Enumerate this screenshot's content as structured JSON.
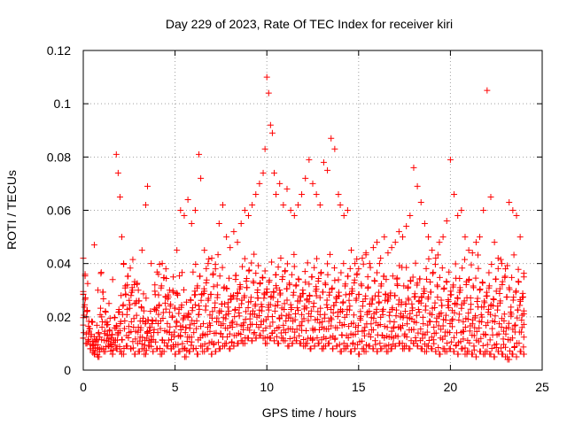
{
  "chart_data": {
    "type": "scatter",
    "title": "Day 229 of 2023, Rate Of TEC Index for receiver kiri",
    "xlabel": "GPS time / hours",
    "ylabel": "ROTI / TECUs",
    "xlim": [
      0,
      25
    ],
    "ylim": [
      0,
      0.12
    ],
    "xticks": [
      "0",
      "5",
      "10",
      "15",
      "20",
      "25"
    ],
    "yticks": [
      "0",
      "0.02",
      "0.04",
      "0.06",
      "0.08",
      "0.1",
      "0.12"
    ],
    "grid": true,
    "marker": "plus",
    "color": "#ff0000",
    "series": [
      {
        "x": [
          0.0,
          0.1,
          0.2,
          0.3,
          0.5,
          0.6,
          0.8,
          1.0,
          1.2,
          1.4,
          1.6,
          1.8,
          1.9,
          2.0,
          2.1,
          2.2,
          2.4,
          2.6,
          2.8,
          3.0,
          3.2,
          3.4,
          3.5,
          3.7,
          3.9,
          4.1,
          4.3,
          4.5,
          4.7,
          4.9,
          5.1,
          5.3,
          5.5,
          5.7,
          5.9,
          6.1,
          6.3,
          6.4,
          6.6,
          6.8,
          7.0,
          7.2,
          7.4,
          7.6,
          7.8,
          8.0,
          8.2,
          8.4,
          8.6,
          8.8,
          9.0,
          9.2,
          9.4,
          9.6,
          9.8,
          9.9,
          10.0,
          10.1,
          10.2,
          10.3,
          10.4,
          10.5,
          10.7,
          10.9,
          11.1,
          11.3,
          11.5,
          11.7,
          11.9,
          12.1,
          12.3,
          12.5,
          12.7,
          12.9,
          13.1,
          13.3,
          13.5,
          13.7,
          13.9,
          14.0,
          14.2,
          14.4,
          14.6,
          14.8,
          15.0,
          15.2,
          15.4,
          15.6,
          15.8,
          16.0,
          16.2,
          16.4,
          16.6,
          16.8,
          17.0,
          17.2,
          17.4,
          17.6,
          17.8,
          18.0,
          18.2,
          18.4,
          18.6,
          18.8,
          19.0,
          19.2,
          19.4,
          19.6,
          19.8,
          20.0,
          20.2,
          20.4,
          20.6,
          20.8,
          21.0,
          21.2,
          21.4,
          21.6,
          21.8,
          22.0,
          22.2,
          22.4,
          22.6,
          22.8,
          23.0,
          23.2,
          23.4,
          23.6,
          23.8,
          24.0
        ],
        "y": [
          0.042,
          0.036,
          0.022,
          0.014,
          0.018,
          0.047,
          0.03,
          0.02,
          0.018,
          0.025,
          0.034,
          0.081,
          0.074,
          0.065,
          0.05,
          0.04,
          0.032,
          0.028,
          0.025,
          0.03,
          0.045,
          0.062,
          0.069,
          0.04,
          0.032,
          0.036,
          0.04,
          0.038,
          0.03,
          0.035,
          0.045,
          0.06,
          0.058,
          0.064,
          0.055,
          0.06,
          0.081,
          0.072,
          0.045,
          0.04,
          0.042,
          0.038,
          0.055,
          0.062,
          0.05,
          0.046,
          0.052,
          0.048,
          0.055,
          0.06,
          0.058,
          0.062,
          0.066,
          0.07,
          0.074,
          0.083,
          0.11,
          0.104,
          0.092,
          0.089,
          0.074,
          0.066,
          0.07,
          0.062,
          0.068,
          0.06,
          0.058,
          0.062,
          0.066,
          0.072,
          0.079,
          0.07,
          0.066,
          0.062,
          0.078,
          0.075,
          0.087,
          0.083,
          0.066,
          0.062,
          0.058,
          0.06,
          0.045,
          0.04,
          0.038,
          0.042,
          0.044,
          0.04,
          0.046,
          0.048,
          0.042,
          0.05,
          0.044,
          0.046,
          0.048,
          0.052,
          0.05,
          0.054,
          0.058,
          0.076,
          0.069,
          0.063,
          0.055,
          0.05,
          0.045,
          0.042,
          0.048,
          0.05,
          0.056,
          0.079,
          0.066,
          0.058,
          0.06,
          0.05,
          0.045,
          0.044,
          0.048,
          0.05,
          0.06,
          0.105,
          0.065,
          0.048,
          0.042,
          0.04,
          0.038,
          0.063,
          0.06,
          0.058,
          0.05,
          0.035
        ]
      },
      {
        "x": [
          0.0,
          0.2,
          0.4,
          0.6,
          0.8,
          1.0,
          1.2,
          1.4,
          1.6,
          1.8,
          2.0,
          2.2,
          2.4,
          2.6,
          2.8,
          3.0,
          3.2,
          3.4,
          3.6,
          3.8,
          4.0,
          4.2,
          4.4,
          4.6,
          4.8,
          5.0,
          5.2,
          5.4,
          5.6,
          5.8,
          6.0,
          6.2,
          6.4,
          6.6,
          6.8,
          7.0,
          7.2,
          7.4,
          7.6,
          7.8,
          8.0,
          8.2,
          8.4,
          8.6,
          8.8,
          9.0,
          9.2,
          9.4,
          9.6,
          9.8,
          10.0,
          10.2,
          10.4,
          10.6,
          10.8,
          11.0,
          11.2,
          11.4,
          11.6,
          11.8,
          12.0,
          12.2,
          12.4,
          12.6,
          12.8,
          13.0,
          13.2,
          13.4,
          13.6,
          13.8,
          14.0,
          14.2,
          14.4,
          14.6,
          14.8,
          15.0,
          15.2,
          15.4,
          15.6,
          15.8,
          16.0,
          16.2,
          16.4,
          16.6,
          16.8,
          17.0,
          17.2,
          17.4,
          17.6,
          17.8,
          18.0,
          18.2,
          18.4,
          18.6,
          18.8,
          19.0,
          19.2,
          19.4,
          19.6,
          19.8,
          20.0,
          20.2,
          20.4,
          20.6,
          20.8,
          21.0,
          21.2,
          21.4,
          21.6,
          21.8,
          22.0,
          22.2,
          22.4,
          22.6,
          22.8,
          23.0,
          23.2,
          23.4,
          23.6,
          23.8,
          24.0
        ],
        "y": [
          0.012,
          0.01,
          0.008,
          0.006,
          0.005,
          0.008,
          0.007,
          0.009,
          0.006,
          0.008,
          0.007,
          0.006,
          0.009,
          0.008,
          0.006,
          0.007,
          0.008,
          0.006,
          0.009,
          0.007,
          0.008,
          0.006,
          0.007,
          0.009,
          0.008,
          0.006,
          0.007,
          0.008,
          0.005,
          0.007,
          0.008,
          0.006,
          0.009,
          0.007,
          0.008,
          0.006,
          0.007,
          0.008,
          0.009,
          0.01,
          0.008,
          0.009,
          0.01,
          0.011,
          0.01,
          0.012,
          0.011,
          0.012,
          0.013,
          0.012,
          0.01,
          0.012,
          0.011,
          0.01,
          0.012,
          0.011,
          0.009,
          0.01,
          0.011,
          0.01,
          0.009,
          0.01,
          0.008,
          0.009,
          0.01,
          0.008,
          0.009,
          0.01,
          0.008,
          0.009,
          0.007,
          0.008,
          0.009,
          0.007,
          0.008,
          0.006,
          0.008,
          0.007,
          0.009,
          0.008,
          0.007,
          0.008,
          0.009,
          0.007,
          0.008,
          0.009,
          0.01,
          0.008,
          0.009,
          0.008,
          0.01,
          0.009,
          0.008,
          0.007,
          0.009,
          0.008,
          0.007,
          0.006,
          0.008,
          0.007,
          0.008,
          0.007,
          0.006,
          0.008,
          0.006,
          0.007,
          0.006,
          0.005,
          0.007,
          0.006,
          0.007,
          0.006,
          0.005,
          0.007,
          0.006,
          0.005,
          0.004,
          0.006,
          0.005,
          0.007,
          0.006
        ]
      }
    ]
  }
}
